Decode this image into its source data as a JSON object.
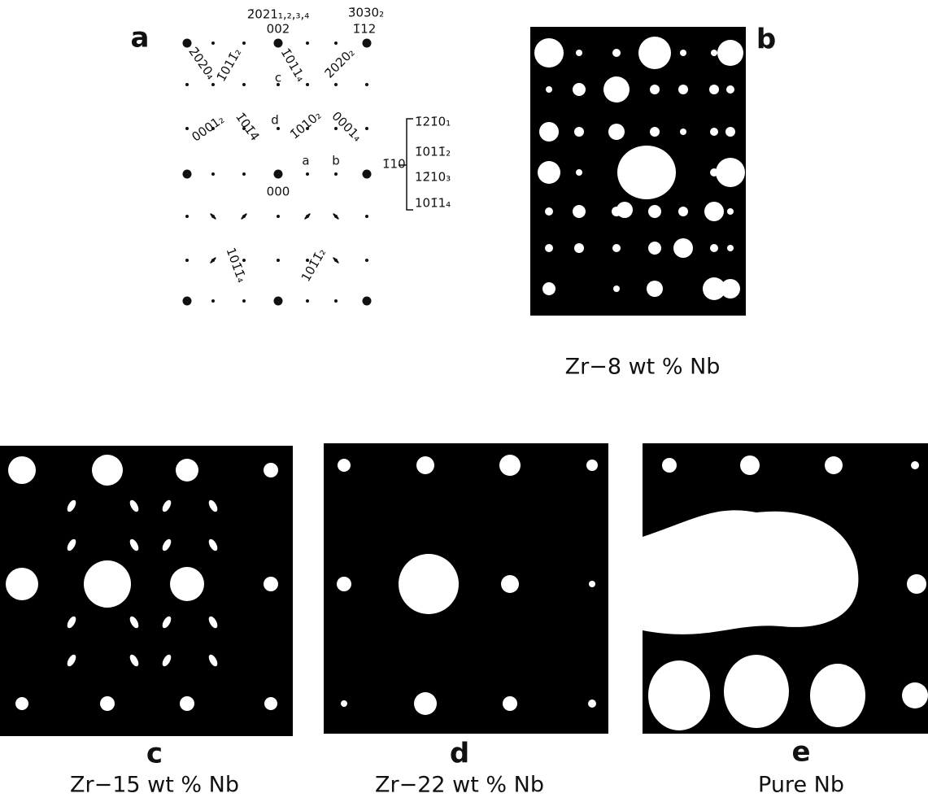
{
  "panels": [
    {
      "label": "a",
      "annotations": [
        "2̄021₁,₂,₃,₄",
        "002",
        "3̄030₂",
        "1̄12",
        "2̄020₄",
        "1̄011̄₂",
        "c",
        "1̄011₄",
        "2̄020₂",
        "0001₂",
        "1̄01̄4",
        "d",
        "1̄010₂",
        "0001₄",
        "a",
        "b",
        "000",
        "1̄10",
        "1̄21̄0₁",
        "1̄011̄₂",
        "12̄10₃",
        "101̄1₄",
        "101̄1̄₄",
        "101̄1̄₂"
      ]
    },
    {
      "label": "b",
      "caption": "Zr−8 wt % Nb"
    },
    {
      "label": "c",
      "caption": "Zr−15 wt % Nb"
    },
    {
      "label": "d",
      "caption": "Zr−22 wt % Nb"
    },
    {
      "label": "e",
      "caption": "Pure Nb"
    }
  ]
}
